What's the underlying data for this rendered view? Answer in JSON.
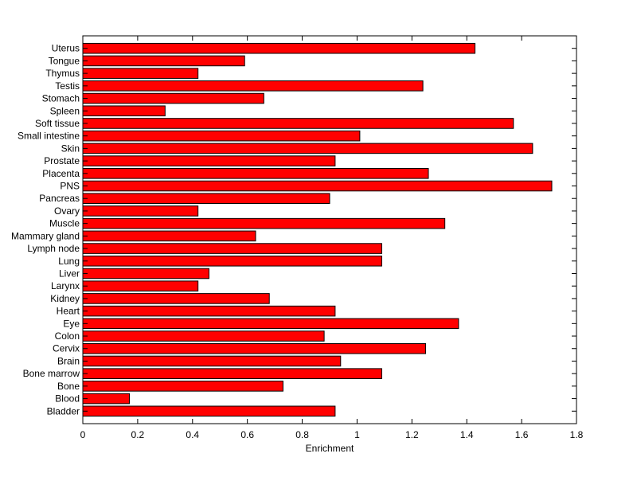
{
  "chart_data": {
    "type": "bar",
    "orientation": "horizontal",
    "categories": [
      "Uterus",
      "Tongue",
      "Thymus",
      "Testis",
      "Stomach",
      "Spleen",
      "Soft tissue",
      "Small intestine",
      "Skin",
      "Prostate",
      "Placenta",
      "PNS",
      "Pancreas",
      "Ovary",
      "Muscle",
      "Mammary gland",
      "Lymph node",
      "Lung",
      "Liver",
      "Larynx",
      "Kidney",
      "Heart",
      "Eye",
      "Colon",
      "Cervix",
      "Brain",
      "Bone marrow",
      "Bone",
      "Blood",
      "Bladder"
    ],
    "values": [
      1.43,
      0.59,
      0.42,
      1.24,
      0.66,
      0.3,
      1.57,
      1.01,
      1.64,
      0.92,
      1.26,
      1.71,
      0.9,
      0.42,
      1.32,
      0.63,
      1.09,
      1.09,
      0.46,
      0.42,
      0.68,
      0.92,
      1.37,
      0.88,
      1.25,
      0.94,
      1.09,
      0.73,
      0.17,
      0.92
    ],
    "title": "",
    "xlabel": "Enrichment",
    "ylabel": "",
    "xlim": [
      0,
      1.8
    ],
    "xticks": [
      "0",
      "0.2",
      "0.4",
      "0.6",
      "0.8",
      "1",
      "1.2",
      "1.4",
      "1.6",
      "1.8"
    ],
    "grid": false,
    "bar_color": "#ff0000",
    "edge_color": "#000000"
  }
}
